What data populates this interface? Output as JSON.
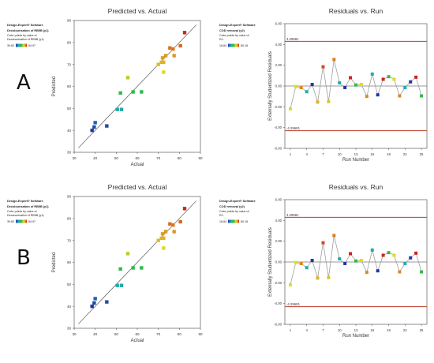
{
  "panels": [
    {
      "letter": "A",
      "left_legend": {
        "software": "Design-Expert® Software",
        "response": "Decolourisation of RB5B (y1)",
        "color_text_1": "Color points by value of",
        "color_text_2": "Decolourisation of RB5B (y1):",
        "min": "39.82",
        "max": "84.97"
      },
      "right_legend": {
        "software": "Design-Expert® Software",
        "response": "COD removal (y2)",
        "color_text_1": "Color points by value of",
        "color_text_2": "R1:",
        "min": "18.84",
        "max": "80.18"
      }
    },
    {
      "letter": "B",
      "left_legend": {
        "software": "Design-Expert® Software",
        "response": "Decolourisation of RB5B (y1)",
        "color_text_1": "Color points by value of",
        "color_text_2": "Decolourisation of RB5B (y1):",
        "min": "39.82",
        "max": "84.97"
      },
      "right_legend": {
        "software": "Design-Expert® Software",
        "response": "COD removal (y2)",
        "color_text_1": "Color points by value of",
        "color_text_2": "R1:",
        "min": "18.84",
        "max": "80.18"
      }
    }
  ],
  "colors": {
    "limit_line": "#c0392b",
    "residual_line": "#9e9e9e",
    "fit_line": "#555555",
    "gradient": [
      "#2233aa",
      "#22aaaa",
      "#33bb44",
      "#dddd22",
      "#dd8822",
      "#cc2222"
    ]
  },
  "chart_data": [
    {
      "type": "scatter",
      "title": "Predicted vs. Actual",
      "xlabel": "Actual",
      "ylabel": "Predicted",
      "xlim": [
        30,
        90
      ],
      "ylim": [
        30,
        90
      ],
      "xticks": [
        "30",
        "40",
        "50",
        "60",
        "70",
        "80",
        "90"
      ],
      "yticks": [
        "30",
        "40",
        "50",
        "60",
        "70",
        "80",
        "90"
      ],
      "points": [
        {
          "x": 38.5,
          "y": 40.0
        },
        {
          "x": 39.5,
          "y": 41.5
        },
        {
          "x": 40.0,
          "y": 43.5
        },
        {
          "x": 45.5,
          "y": 42.0
        },
        {
          "x": 50.5,
          "y": 49.5
        },
        {
          "x": 52.5,
          "y": 49.5
        },
        {
          "x": 52.0,
          "y": 57.0
        },
        {
          "x": 55.5,
          "y": 64.0
        },
        {
          "x": 58.0,
          "y": 57.5
        },
        {
          "x": 62.0,
          "y": 57.5
        },
        {
          "x": 70.0,
          "y": 70.0
        },
        {
          "x": 71.5,
          "y": 71.0
        },
        {
          "x": 72.5,
          "y": 71.0
        },
        {
          "x": 72.0,
          "y": 73.0
        },
        {
          "x": 73.5,
          "y": 74.0
        },
        {
          "x": 72.5,
          "y": 66.5
        },
        {
          "x": 75.5,
          "y": 77.5
        },
        {
          "x": 77.5,
          "y": 74.0
        },
        {
          "x": 77.0,
          "y": 77.0
        },
        {
          "x": 80.5,
          "y": 78.5
        },
        {
          "x": 82.5,
          "y": 84.5
        }
      ]
    },
    {
      "type": "line",
      "title": "Residuals vs. Run",
      "xlabel": "Run Number",
      "ylabel": "Externally Studentized Residuals",
      "xlim": [
        0,
        26
      ],
      "ylim": [
        -6,
        6
      ],
      "xticks": [
        1,
        4,
        7,
        10,
        13,
        16,
        19,
        22,
        25
      ],
      "yticks": [
        "6.00",
        "4.00",
        "2.00",
        "0.00",
        "-2.00",
        "-4.00",
        "-6.00"
      ],
      "limits": {
        "upper": 4.29681,
        "lower": -4.29681,
        "upper_label": "4.29681",
        "lower_label": "-4.29681"
      },
      "x": [
        1,
        2,
        3,
        4,
        5,
        6,
        7,
        8,
        9,
        10,
        11,
        12,
        13,
        14,
        15,
        16,
        17,
        18,
        19,
        20,
        21,
        22,
        23,
        24,
        25
      ],
      "y": [
        -2.2,
        -0.05,
        -0.15,
        -0.55,
        0.15,
        -1.55,
        1.85,
        -1.5,
        2.55,
        0.3,
        -0.15,
        0.8,
        0.1,
        0.15,
        -1.0,
        1.15,
        -0.85,
        0.65,
        0.9,
        0.65,
        -0.95,
        -0.15,
        0.4,
        0.85,
        -0.95
      ]
    }
  ]
}
